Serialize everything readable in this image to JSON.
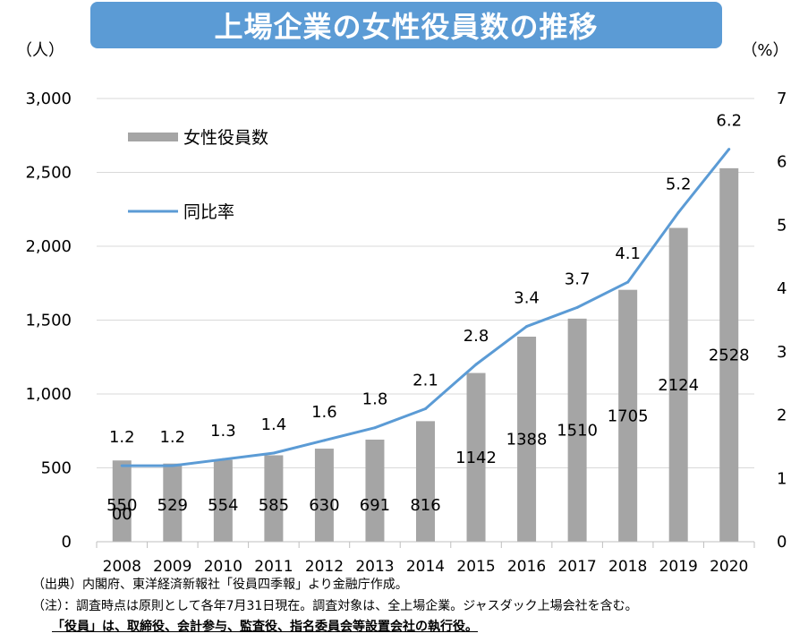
{
  "chart_data": {
    "type": "bar",
    "title": "上場企業の女性役員数の推移",
    "categories": [
      "2008",
      "2009",
      "2010",
      "2011",
      "2012",
      "2013",
      "2014",
      "2015",
      "2016",
      "2017",
      "2018",
      "2019",
      "2020"
    ],
    "series": [
      {
        "name": "女性役員数",
        "type": "bar",
        "axis": "left",
        "values": [
          550,
          529,
          554,
          585,
          630,
          691,
          816,
          1142,
          1388,
          1510,
          1705,
          2124,
          2528
        ],
        "labels": [
          "550",
          "529",
          "554",
          "585",
          "630",
          "691",
          "816",
          "1142",
          "1388",
          "1510",
          "1705",
          "2124",
          "2528"
        ],
        "color": "#a5a5a5"
      },
      {
        "name": "同比率",
        "type": "line",
        "axis": "right",
        "values": [
          1.2,
          1.2,
          1.3,
          1.4,
          1.6,
          1.8,
          2.1,
          2.8,
          3.4,
          3.7,
          4.1,
          5.2,
          6.2
        ],
        "labels": [
          "1.2",
          "1.2",
          "1.3",
          "1.4",
          "1.6",
          "1.8",
          "2.1",
          "2.8",
          "3.4",
          "3.7",
          "4.1",
          "5.2",
          "6.2"
        ],
        "color": "#5b9bd5"
      }
    ],
    "extra_labels": [
      "00"
    ],
    "y_left": {
      "unit": "（人）",
      "min": 0,
      "max": 3000,
      "step": 500,
      "ticks": [
        "0",
        "500",
        "1,000",
        "1,500",
        "2,000",
        "2,500",
        "3,000"
      ]
    },
    "y_right": {
      "unit": "（%）",
      "min": 0,
      "max": 7,
      "step": 1,
      "ticks": [
        "0",
        "1",
        "2",
        "3",
        "4",
        "5",
        "6",
        "7"
      ]
    },
    "grid": true,
    "legend_position": "top-left"
  },
  "notes": {
    "source": "（出典）内閣府、東洋経済新報社「役員四季報」より金融庁作成。",
    "note": "（注）：調査時点は原則として各年7月31日現在。調査対象は、全上場企業。ジャスダック上場会社を含む。",
    "definition": "「役員」は、取締役、会計参与、監査役、指名委員会等設置会社の執行役。"
  }
}
